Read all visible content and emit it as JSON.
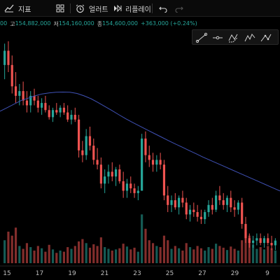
{
  "toolbar": {
    "indicators_label": "지표",
    "alerts_label": "얼러트",
    "replay_label": "리플레이"
  },
  "ohlc": {
    "open_value": "00",
    "high_label": "고",
    "high_value": "154,882,000",
    "low_label": "저",
    "low_value": "154,160,000",
    "close_label": "종",
    "close_value": "154,600,000",
    "change": "+363,000 (+0.24%)"
  },
  "colors": {
    "up": "#26a69a",
    "down": "#ef5350",
    "ma": "#3f51b5",
    "background": "#000000"
  },
  "chart_data": {
    "type": "candlestick",
    "x_tick_labels": [
      "15",
      "17",
      "19",
      "21",
      "23",
      "25",
      "27",
      "29",
      "9"
    ],
    "price_range": [
      149000000,
      158500000
    ],
    "volume_range": [
      0,
      100
    ],
    "candles": [
      [
        157000000,
        157900000,
        156400000,
        157600000,
        40
      ],
      [
        157600000,
        158000000,
        156700000,
        157000000,
        55
      ],
      [
        157000000,
        157400000,
        155800000,
        156100000,
        48
      ],
      [
        156100000,
        156700000,
        155400000,
        155700000,
        62
      ],
      [
        155700000,
        156200000,
        155300000,
        155900000,
        30
      ],
      [
        155900000,
        156300000,
        155300000,
        155500000,
        25
      ],
      [
        155500000,
        155900000,
        155000000,
        155300000,
        35
      ],
      [
        155300000,
        155900000,
        155000000,
        155700000,
        28
      ],
      [
        155700000,
        156000000,
        155300000,
        155500000,
        22
      ],
      [
        155500000,
        155700000,
        155000000,
        155200000,
        30
      ],
      [
        155200000,
        155600000,
        154900000,
        155400000,
        26
      ],
      [
        155400000,
        155700000,
        155000000,
        155100000,
        20
      ],
      [
        155100000,
        155300000,
        154700000,
        154800000,
        32
      ],
      [
        154800000,
        155200000,
        154600000,
        155100000,
        24
      ],
      [
        155100000,
        155400000,
        154900000,
        155000000,
        18
      ],
      [
        155000000,
        155300000,
        154800000,
        155200000,
        22
      ],
      [
        155200000,
        155400000,
        154900000,
        155000000,
        20
      ],
      [
        155000000,
        155300000,
        154600000,
        154700000,
        28
      ],
      [
        154700000,
        155100000,
        154500000,
        154900000,
        25
      ],
      [
        154900000,
        155200000,
        154600000,
        154700000,
        30
      ],
      [
        154700000,
        154900000,
        153100000,
        153400000,
        38
      ],
      [
        153400000,
        153800000,
        152900000,
        153200000,
        42
      ],
      [
        153200000,
        154300000,
        153000000,
        154000000,
        35
      ],
      [
        154000000,
        154400000,
        153400000,
        153600000,
        27
      ],
      [
        153600000,
        153900000,
        152800000,
        153000000,
        33
      ],
      [
        153000000,
        153500000,
        152600000,
        152800000,
        30
      ],
      [
        152800000,
        153100000,
        151800000,
        152000000,
        45
      ],
      [
        152000000,
        152600000,
        151600000,
        152300000,
        28
      ],
      [
        152300000,
        152800000,
        152000000,
        152500000,
        25
      ],
      [
        152500000,
        152900000,
        152100000,
        152300000,
        22
      ],
      [
        152300000,
        152700000,
        151900000,
        152600000,
        24
      ],
      [
        152600000,
        152800000,
        152000000,
        152100000,
        26
      ],
      [
        152100000,
        152500000,
        151400000,
        151700000,
        34
      ],
      [
        151700000,
        152200000,
        151400000,
        152000000,
        29
      ],
      [
        152000000,
        152300000,
        151600000,
        151800000,
        24
      ],
      [
        151800000,
        152000000,
        151400000,
        151600000,
        27
      ],
      [
        151600000,
        151900000,
        151300000,
        151700000,
        20
      ],
      [
        151700000,
        154100000,
        151700000,
        153900000,
        85
      ],
      [
        153900000,
        154200000,
        152900000,
        153200000,
        60
      ],
      [
        153200000,
        153600000,
        152700000,
        153000000,
        40
      ],
      [
        153000000,
        153300000,
        152500000,
        152800000,
        35
      ],
      [
        152800000,
        153200000,
        152500000,
        153000000,
        30
      ],
      [
        153000000,
        153300000,
        152600000,
        152800000,
        28
      ],
      [
        152800000,
        153000000,
        151300000,
        151500000,
        48
      ],
      [
        151500000,
        151900000,
        150800000,
        151100000,
        40
      ],
      [
        151100000,
        151500000,
        150800000,
        151300000,
        25
      ],
      [
        151300000,
        151600000,
        150900000,
        151000000,
        30
      ],
      [
        151000000,
        151500000,
        150700000,
        151400000,
        26
      ],
      [
        151400000,
        151700000,
        151000000,
        151200000,
        22
      ],
      [
        151200000,
        151400000,
        150500000,
        150700000,
        35
      ],
      [
        150700000,
        151100000,
        150400000,
        150900000,
        28
      ],
      [
        150900000,
        151200000,
        150600000,
        150800000,
        24
      ],
      [
        150800000,
        151100000,
        150400000,
        150600000,
        30
      ],
      [
        150600000,
        150900000,
        150300000,
        150500000,
        26
      ],
      [
        150500000,
        150900000,
        150300000,
        150800000,
        22
      ],
      [
        150800000,
        151300000,
        150600000,
        151100000,
        28
      ],
      [
        151100000,
        151400000,
        150700000,
        150900000,
        25
      ],
      [
        150900000,
        151700000,
        150800000,
        151500000,
        34
      ],
      [
        151500000,
        151900000,
        151100000,
        151300000,
        30
      ],
      [
        151300000,
        151600000,
        150900000,
        151100000,
        27
      ],
      [
        151100000,
        151500000,
        150800000,
        151400000,
        23
      ],
      [
        151400000,
        151700000,
        150800000,
        151000000,
        29
      ],
      [
        151000000,
        151300000,
        150600000,
        150900000,
        25
      ],
      [
        150900000,
        151300000,
        150700000,
        151200000,
        22
      ],
      [
        151200000,
        151400000,
        150100000,
        150300000,
        40
      ],
      [
        150300000,
        150600000,
        149500000,
        149700000,
        55
      ],
      [
        149700000,
        149900000,
        149300000,
        149500000,
        48
      ],
      [
        149500000,
        149800000,
        149300000,
        149600000,
        32
      ],
      [
        149600000,
        149900000,
        149400000,
        149700000,
        25
      ],
      [
        149700000,
        149900000,
        149400000,
        149500000,
        28
      ],
      [
        149500000,
        149800000,
        149300000,
        149700000,
        24
      ],
      [
        149700000,
        149900000,
        149400000,
        149500000,
        30
      ],
      [
        149500000,
        149800000,
        149200000,
        149400000,
        26
      ],
      [
        149400000,
        149700000,
        149200000,
        149600000,
        22
      ]
    ],
    "ma_values": [
      155050000,
      155200000,
      155350000,
      155500000,
      155600000,
      155700000,
      155780000,
      155820000,
      155850000,
      155860000,
      155850000,
      155800000,
      155700000,
      155580000,
      155420000,
      155250000,
      155080000,
      154900000,
      154730000,
      154570000,
      154420000,
      154270000,
      154120000,
      153970000,
      153820000,
      153680000,
      153540000,
      153400000,
      153260000,
      153120000,
      152990000,
      152860000,
      152730000,
      152600000,
      152470000,
      152340000,
      152210000,
      152080000,
      151950000,
      151820000,
      151690000
    ]
  }
}
